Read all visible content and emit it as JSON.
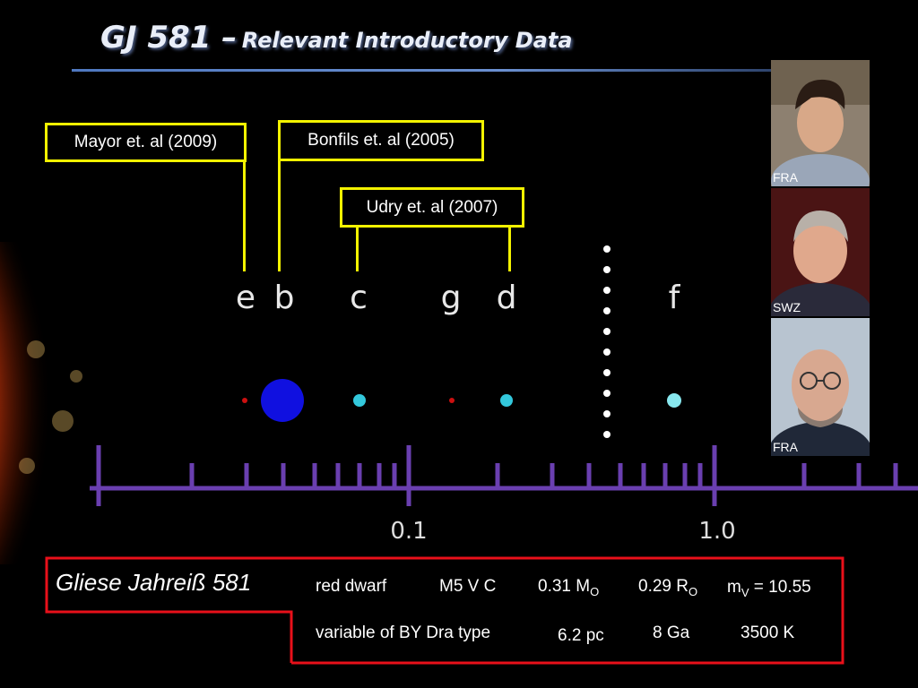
{
  "title": {
    "main": "GJ 581 –",
    "sub": "Relevant Introductory Data"
  },
  "references": [
    {
      "label": "Mayor et. al (2009)"
    },
    {
      "label": "Bonfils et. al (2005)"
    },
    {
      "label": "Udry et. al (2007)"
    }
  ],
  "planets": [
    {
      "letter": "e",
      "color": "#cc1010"
    },
    {
      "letter": "b",
      "color": "#1010e0"
    },
    {
      "letter": "c",
      "color": "#33c8dc"
    },
    {
      "letter": "g",
      "color": "#cc1010"
    },
    {
      "letter": "d",
      "color": "#33c8dc"
    },
    {
      "letter": "f",
      "color": "#88e8ef"
    }
  ],
  "axis": {
    "tick_labels": [
      "0.1",
      "1.0"
    ],
    "color": "#6a3fb0"
  },
  "photos": [
    {
      "caption": "FRA"
    },
    {
      "caption": "SWZ"
    },
    {
      "caption": "FRA"
    }
  ],
  "star_info": {
    "name": "Gliese Jahreiß  581",
    "type": "red dwarf",
    "spectral_class": "M5 V C",
    "mass": "0.31 M",
    "mass_sub": "O",
    "radius": "0.29 R",
    "radius_sub": "O",
    "mv_prefix": "m",
    "mv_sub": "V",
    "mv_value": " = 10.55",
    "variable": "variable of BY Dra type",
    "distance": "6.2 pc",
    "age": "8 Ga",
    "temperature": "3500 K"
  }
}
